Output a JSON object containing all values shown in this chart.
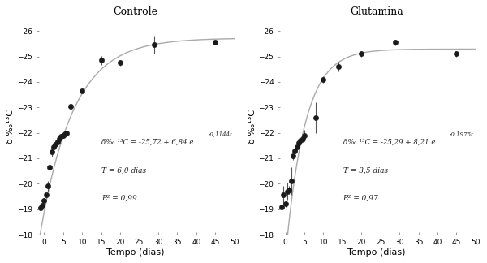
{
  "title_left": "Controle",
  "title_right": "Glutamina",
  "xlabel": "Tempo (dias)",
  "ylabel": "δ ‰¹³C",
  "bg_color": "#ffffff",
  "line_color": "#aaaaaa",
  "marker_color": "#1a1a1a",
  "text_color": "#222222",
  "controle": {
    "a": -25.72,
    "b": 6.84,
    "k": 0.1144,
    "data_x": [
      -1.0,
      -0.5,
      0.0,
      0.5,
      1.0,
      1.5,
      2.0,
      2.5,
      3.0,
      3.5,
      4.0,
      4.5,
      5.0,
      5.5,
      6.0,
      7.0,
      10.0,
      15.0,
      20.0,
      29.0,
      45.0
    ],
    "data_y": [
      -19.05,
      -19.15,
      -19.35,
      -19.55,
      -19.9,
      -20.65,
      -21.25,
      -21.45,
      -21.55,
      -21.65,
      -21.75,
      -21.85,
      -21.9,
      -21.95,
      -22.0,
      -23.05,
      -23.65,
      -24.85,
      -24.75,
      -25.45,
      -25.55
    ],
    "data_yerr": [
      0.12,
      0.1,
      0.1,
      0.1,
      0.2,
      0.2,
      0.2,
      0.12,
      0.15,
      0.1,
      0.1,
      0.1,
      0.1,
      0.1,
      0.12,
      0.12,
      0.1,
      0.18,
      0.12,
      0.35,
      0.1
    ],
    "eq_main": "δ‰ ¹³C = -25,72 + 6,84 e",
    "eq_exp": "-0,1144t",
    "T_text": "T = 6,0 dias",
    "R2_text": "R² = 0,99"
  },
  "glutamina": {
    "a": -25.29,
    "b": 8.21,
    "k": 0.1975,
    "data_x": [
      -1.0,
      -0.5,
      0.0,
      0.5,
      1.0,
      1.5,
      2.0,
      2.5,
      3.0,
      3.5,
      4.0,
      4.5,
      5.0,
      8.0,
      10.0,
      14.0,
      20.0,
      29.0,
      45.0
    ],
    "data_y": [
      -19.1,
      -19.55,
      -19.2,
      -19.7,
      -19.75,
      -20.1,
      -21.1,
      -21.3,
      -21.45,
      -21.6,
      -21.7,
      -21.75,
      -21.9,
      -22.6,
      -24.1,
      -24.6,
      -25.1,
      -25.55,
      -25.1
    ],
    "data_yerr": [
      0.1,
      0.35,
      0.12,
      0.35,
      0.15,
      0.55,
      0.15,
      0.15,
      0.15,
      0.12,
      0.1,
      0.12,
      0.22,
      0.6,
      0.12,
      0.18,
      0.12,
      0.12,
      0.1
    ],
    "eq_main": "δ‰ ¹³C = -25,29 + 8,21 e",
    "eq_exp": "-0,1975t",
    "T_text": "T = 3,5 dias",
    "R2_text": "R² = 0,97"
  },
  "yticks": [
    -26,
    -25,
    -24,
    -23,
    -22,
    -21,
    -20,
    -19,
    -18
  ],
  "xticks": [
    0,
    5,
    10,
    15,
    20,
    25,
    30,
    35,
    40,
    45,
    50
  ]
}
